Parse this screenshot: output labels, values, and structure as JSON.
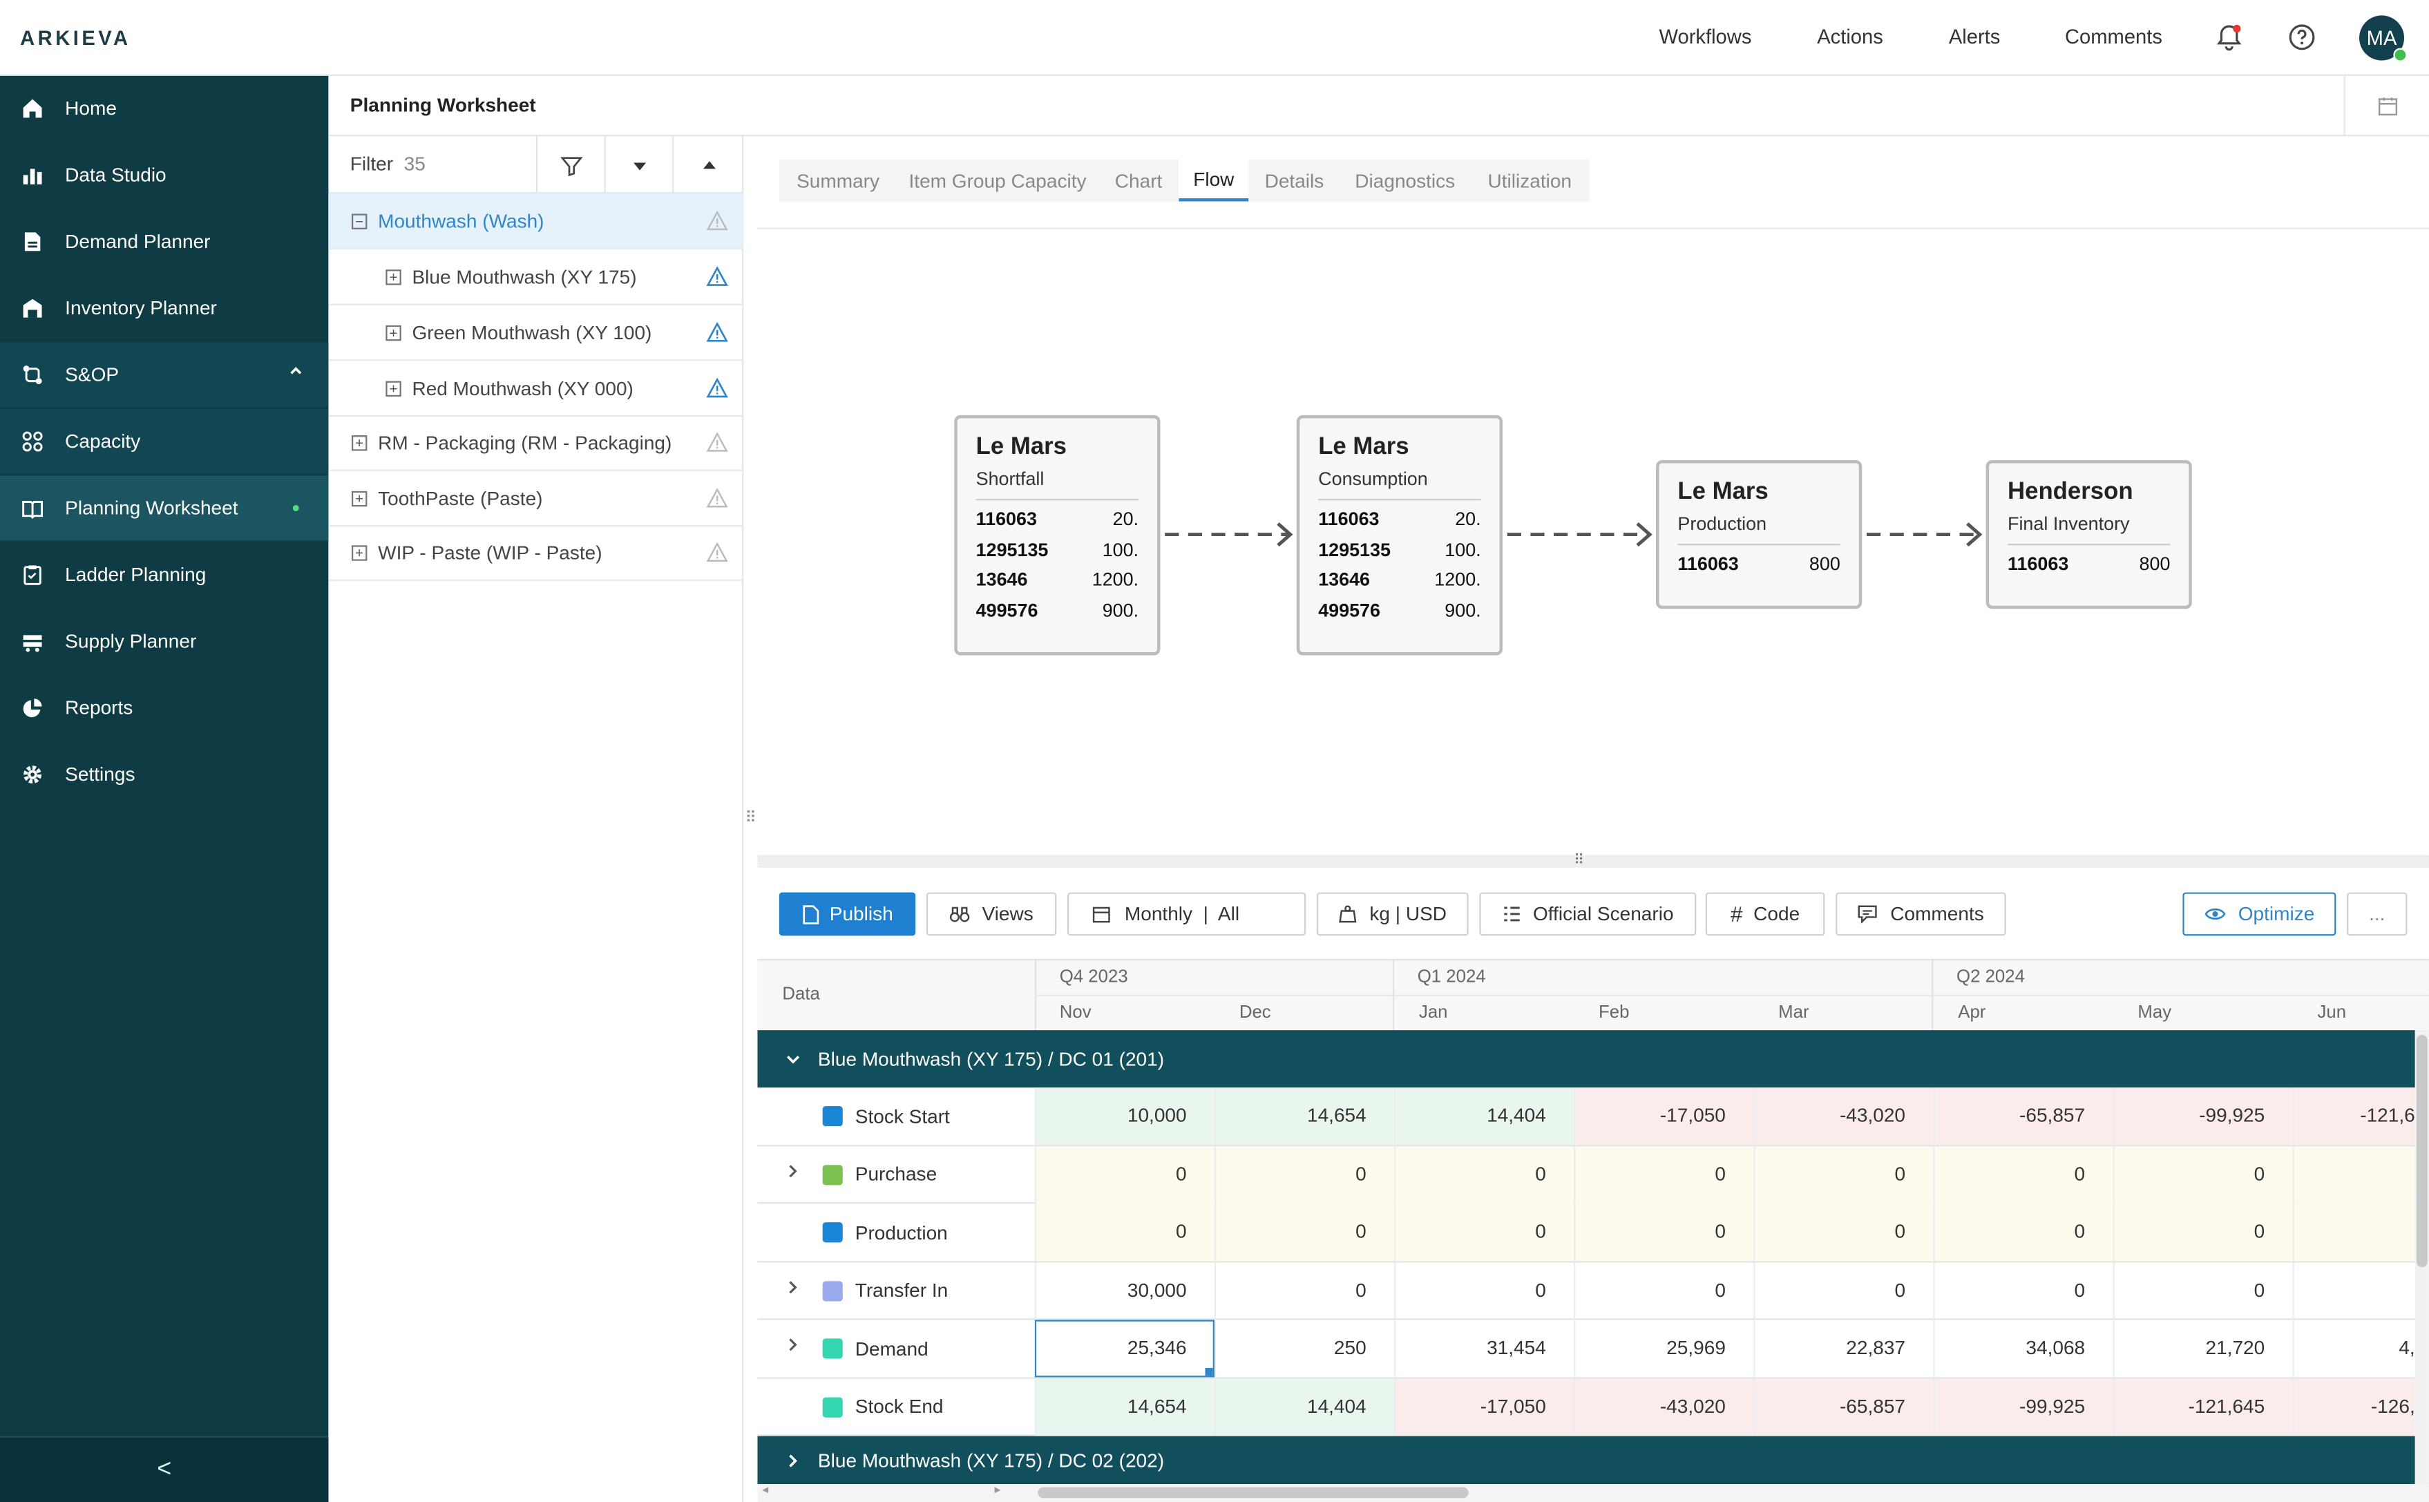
{
  "header": {
    "logo": "ARKIEVA",
    "nav": [
      "Workflows",
      "Actions",
      "Alerts",
      "Comments"
    ],
    "avatar_initials": "MA"
  },
  "sidebar": {
    "items": [
      {
        "label": "Home",
        "icon": "home-icon"
      },
      {
        "label": "Data Studio",
        "icon": "bar-chart-icon"
      },
      {
        "label": "Demand Planner",
        "icon": "document-icon"
      },
      {
        "label": "Inventory Planner",
        "icon": "warehouse-icon"
      },
      {
        "label": "S&OP",
        "icon": "cycle-icon"
      },
      {
        "label": "Capacity",
        "icon": "grid-circles-icon"
      },
      {
        "label": "Planning Worksheet",
        "icon": "book-icon"
      },
      {
        "label": "Ladder Planning",
        "icon": "clipboard-icon"
      },
      {
        "label": "Supply Planner",
        "icon": "truck-icon"
      },
      {
        "label": "Reports",
        "icon": "pie-chart-icon"
      },
      {
        "label": "Settings",
        "icon": "gear-icon"
      }
    ],
    "collapse_glyph": "<"
  },
  "page": {
    "title": "Planning Worksheet"
  },
  "tree": {
    "filter_label": "Filter",
    "filter_count": "35",
    "items": [
      {
        "label": "Mouthwash (Wash)",
        "expanded": true
      },
      {
        "label": "Blue Mouthwash (XY 175)"
      },
      {
        "label": "Green Mouthwash (XY 100)"
      },
      {
        "label": "Red Mouthwash (XY 000)"
      },
      {
        "label": "RM - Packaging (RM - Packaging)"
      },
      {
        "label": "ToothPaste (Paste)"
      },
      {
        "label": "WIP - Paste (WIP - Paste)"
      }
    ]
  },
  "tabs": [
    "Summary",
    "Item Group Capacity",
    "Chart",
    "Flow",
    "Details",
    "Diagnostics",
    "Utilization"
  ],
  "active_tab": "Flow",
  "flow": {
    "nodes": [
      {
        "title": "Le Mars",
        "subtitle": "Shortfall",
        "rows": [
          [
            "116063",
            "20."
          ],
          [
            "1295135",
            "100."
          ],
          [
            "13646",
            "1200."
          ],
          [
            "499576",
            "900."
          ]
        ]
      },
      {
        "title": "Le Mars",
        "subtitle": "Consumption",
        "rows": [
          [
            "116063",
            "20."
          ],
          [
            "1295135",
            "100."
          ],
          [
            "13646",
            "1200."
          ],
          [
            "499576",
            "900."
          ]
        ]
      },
      {
        "title": "Le Mars",
        "subtitle": "Production",
        "rows": [
          [
            "116063",
            "800"
          ]
        ]
      },
      {
        "title": "Henderson",
        "subtitle": "Final Inventory",
        "rows": [
          [
            "116063",
            "800"
          ]
        ]
      }
    ]
  },
  "toolbar": {
    "publish": "Publish",
    "views": "Views",
    "period": "Monthly  |  All",
    "units": "kg | USD",
    "scenario": "Official Scenario",
    "code": "Code",
    "comments": "Comments",
    "optimize": "Optimize",
    "more": "..."
  },
  "grid": {
    "data_header": "Data",
    "quarters": [
      "Q4 2023",
      "Q1 2024",
      "Q2 2024"
    ],
    "months": [
      "Nov",
      "Dec",
      "Jan",
      "Feb",
      "Mar",
      "Apr",
      "May",
      "Jun"
    ],
    "group1": "Blue Mouthwash (XY 175) / DC 01 (201)",
    "group2": "Blue Mouthwash (XY 175) / DC 02 (202)",
    "rows": [
      {
        "label": "Stock Start",
        "color": "#1a87d6",
        "expandable": false,
        "values": [
          "10,000",
          "14,654",
          "14,404",
          "-17,050",
          "-43,020",
          "-65,857",
          "-99,925",
          "-121,6"
        ]
      },
      {
        "label": "Purchase",
        "color": "#7cc04f",
        "expandable": true,
        "values": [
          "0",
          "0",
          "0",
          "0",
          "0",
          "0",
          "0",
          ""
        ]
      },
      {
        "label": "Production",
        "color": "#1a87d6",
        "expandable": false,
        "values": [
          "0",
          "0",
          "0",
          "0",
          "0",
          "0",
          "0",
          ""
        ]
      },
      {
        "label": "Transfer In",
        "color": "#9aa9ec",
        "expandable": true,
        "values": [
          "30,000",
          "0",
          "0",
          "0",
          "0",
          "0",
          "0",
          ""
        ]
      },
      {
        "label": "Demand",
        "color": "#33d6b0",
        "expandable": true,
        "values": [
          "25,346",
          "250",
          "31,454",
          "25,969",
          "22,837",
          "34,068",
          "21,720",
          "4,"
        ]
      },
      {
        "label": "Stock End",
        "color": "#33d6b0",
        "expandable": false,
        "values": [
          "14,654",
          "14,404",
          "-17,050",
          "-43,020",
          "-65,857",
          "-99,925",
          "-121,645",
          "-126,"
        ]
      }
    ]
  }
}
